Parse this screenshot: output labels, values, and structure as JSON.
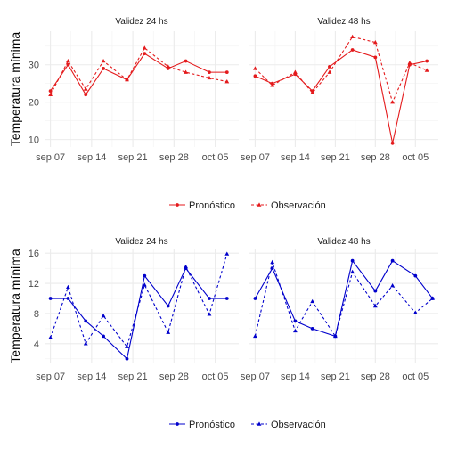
{
  "x_ticks": [
    "sep 07",
    "sep 14",
    "sep 21",
    "sep 28",
    "oct 05"
  ],
  "chart_data": [
    {
      "type": "line",
      "ylabel": "Temperatura mínima",
      "color": "#e41a1c",
      "ylim": [
        8,
        39
      ],
      "yticks": [
        10,
        20,
        30
      ],
      "legend": {
        "position": "bottom",
        "items": [
          "Pronóstico",
          "Observación"
        ]
      },
      "panels": [
        {
          "title": "Validez 24 hs",
          "series": [
            {
              "name": "Pronóstico",
              "x": [
                "2024-09-07",
                "2024-09-10",
                "2024-09-13",
                "2024-09-16",
                "2024-09-20",
                "2024-09-23",
                "2024-09-27",
                "2024-09-30",
                "2024-10-04",
                "2024-10-07"
              ],
              "y": [
                23,
                30,
                22,
                29,
                26,
                33,
                29,
                31,
                28,
                28
              ]
            },
            {
              "name": "Observación",
              "x": [
                "2024-09-07",
                "2024-09-10",
                "2024-09-13",
                "2024-09-16",
                "2024-09-20",
                "2024-09-23",
                "2024-09-27",
                "2024-09-30",
                "2024-10-04",
                "2024-10-07"
              ],
              "y": [
                22,
                31,
                23.5,
                31,
                26,
                34.5,
                29.5,
                28,
                26.5,
                25.5
              ]
            }
          ]
        },
        {
          "title": "Validez 48 hs",
          "series": [
            {
              "name": "Pronóstico",
              "x": [
                "2024-09-07",
                "2024-09-10",
                "2024-09-14",
                "2024-09-17",
                "2024-09-20",
                "2024-09-24",
                "2024-09-28",
                "2024-10-01",
                "2024-10-04",
                "2024-10-07"
              ],
              "y": [
                27,
                25,
                27.5,
                23,
                29.5,
                34,
                32,
                9,
                30,
                31
              ]
            },
            {
              "name": "Observación",
              "x": [
                "2024-09-07",
                "2024-09-10",
                "2024-09-14",
                "2024-09-17",
                "2024-09-20",
                "2024-09-24",
                "2024-09-28",
                "2024-10-01",
                "2024-10-04",
                "2024-10-07"
              ],
              "y": [
                29,
                24.5,
                28,
                22.5,
                28,
                37.5,
                36,
                20,
                30.5,
                28.5
              ]
            }
          ]
        }
      ]
    },
    {
      "type": "line",
      "ylabel": "Temperatura mínima",
      "color": "#0000cc",
      "ylim": [
        1.5,
        16.5
      ],
      "yticks": [
        4,
        8,
        12,
        16
      ],
      "legend": {
        "position": "bottom",
        "items": [
          "Pronóstico",
          "Observación"
        ]
      },
      "panels": [
        {
          "title": "Validez 24 hs",
          "series": [
            {
              "name": "Pronóstico",
              "x": [
                "2024-09-07",
                "2024-09-10",
                "2024-09-13",
                "2024-09-16",
                "2024-09-20",
                "2024-09-23",
                "2024-09-27",
                "2024-09-30",
                "2024-10-04",
                "2024-10-07"
              ],
              "y": [
                10,
                10,
                7,
                5,
                2,
                13,
                9,
                14,
                10,
                10
              ]
            },
            {
              "name": "Observación",
              "x": [
                "2024-09-07",
                "2024-09-10",
                "2024-09-13",
                "2024-09-16",
                "2024-09-20",
                "2024-09-23",
                "2024-09-27",
                "2024-09-30",
                "2024-10-04",
                "2024-10-07"
              ],
              "y": [
                4.8,
                11.5,
                4,
                7.7,
                3.6,
                11.8,
                5.5,
                14.2,
                7.9,
                15.9
              ]
            }
          ]
        },
        {
          "title": "Validez 48 hs",
          "series": [
            {
              "name": "Pronóstico",
              "x": [
                "2024-09-07",
                "2024-09-10",
                "2024-09-14",
                "2024-09-17",
                "2024-09-21",
                "2024-09-24",
                "2024-09-28",
                "2024-10-01",
                "2024-10-05",
                "2024-10-08"
              ],
              "y": [
                10,
                14,
                7,
                6,
                5,
                15,
                11,
                15,
                13,
                10
              ]
            },
            {
              "name": "Observación",
              "x": [
                "2024-09-07",
                "2024-09-10",
                "2024-09-14",
                "2024-09-17",
                "2024-09-21",
                "2024-09-24",
                "2024-09-28",
                "2024-10-01",
                "2024-10-05",
                "2024-10-08"
              ],
              "y": [
                5,
                14.8,
                5.7,
                9.6,
                5,
                13.5,
                9,
                11.7,
                8.1,
                10
              ]
            }
          ]
        }
      ]
    }
  ]
}
